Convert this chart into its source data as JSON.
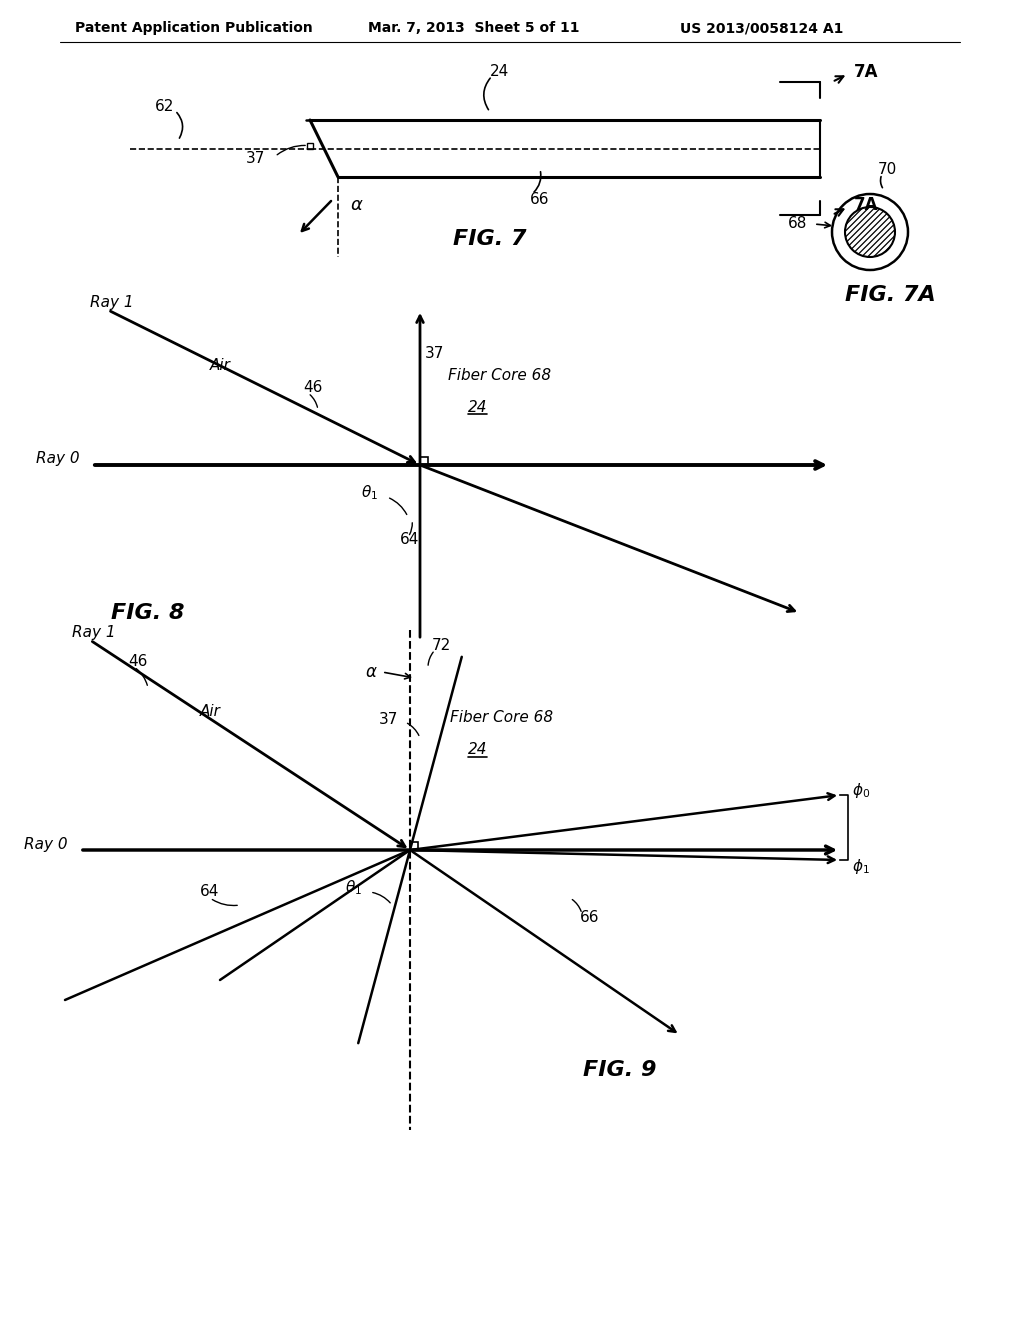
{
  "bg_color": "#ffffff",
  "header_left": "Patent Application Publication",
  "header_mid": "Mar. 7, 2013  Sheet 5 of 11",
  "header_right": "US 2013/0058124 A1"
}
